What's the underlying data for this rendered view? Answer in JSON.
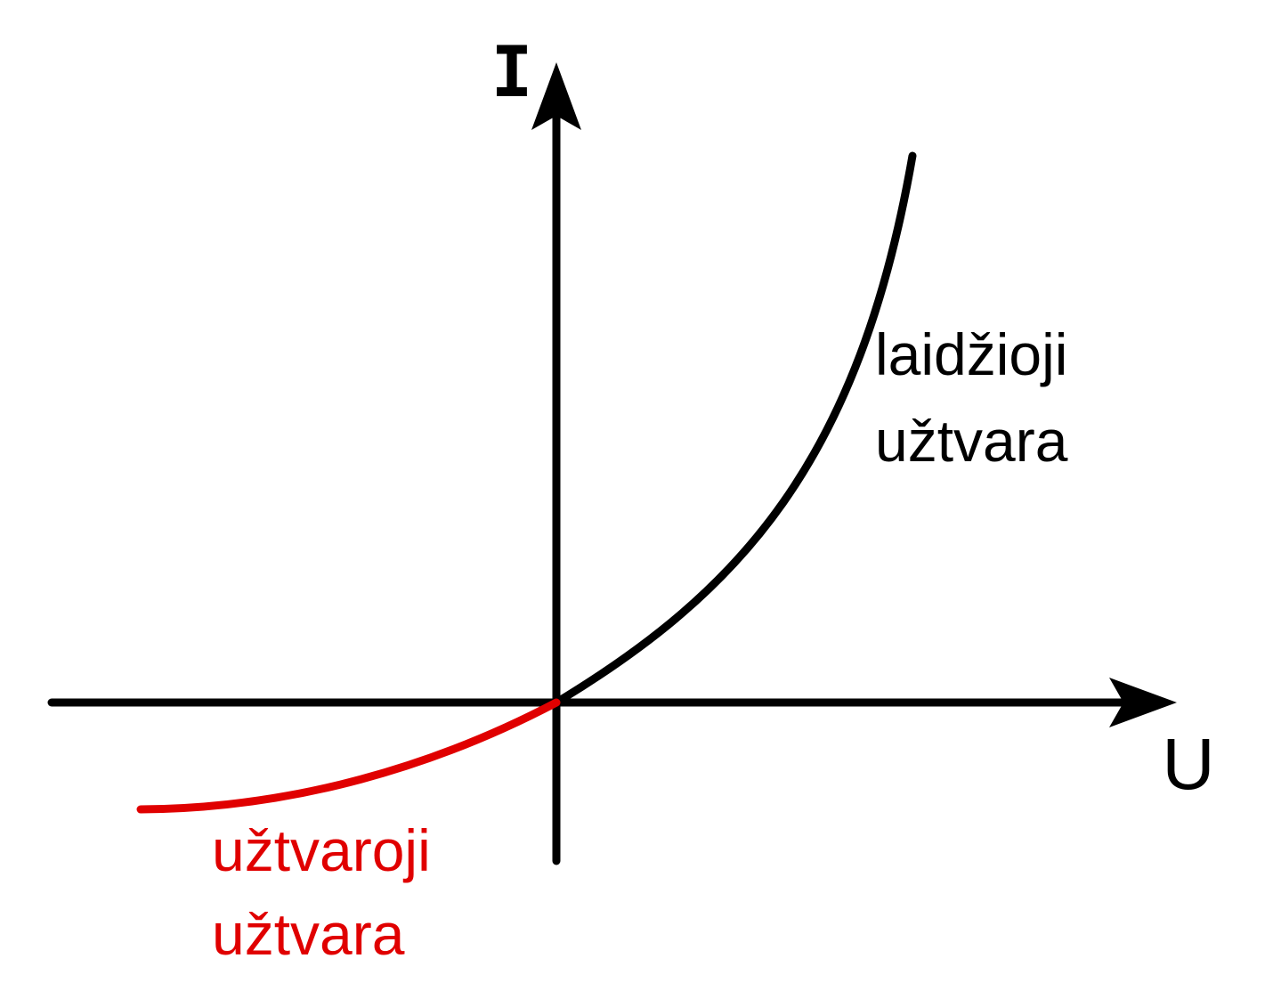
{
  "axes": {
    "y_label": "I",
    "x_label": "U"
  },
  "curves": {
    "forward": {
      "label_line1": "laidžioji",
      "label_line2": "užtvara",
      "color": "#000000"
    },
    "reverse": {
      "label_line1": "užtvaroji",
      "label_line2": "užtvara",
      "color": "#e00000"
    }
  },
  "colors": {
    "axis": "#000000",
    "background": "#ffffff"
  }
}
